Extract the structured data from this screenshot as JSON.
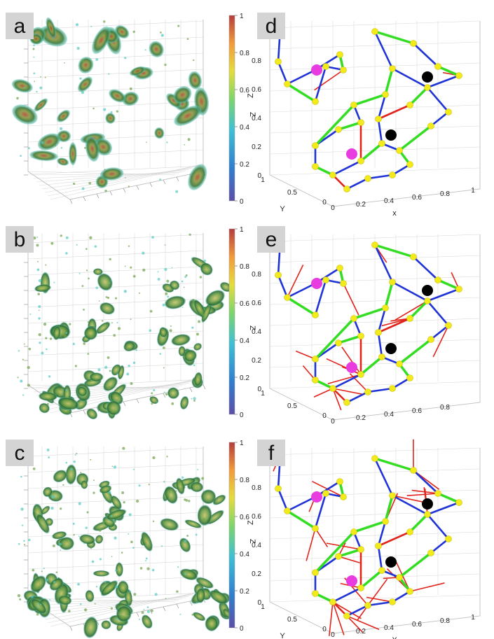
{
  "chart_data": [
    {
      "panel": "a",
      "type": "3d-isosurface",
      "label": "a",
      "colorbar": {
        "ticks": [
          "0",
          "0.2",
          "0.4",
          "0.6",
          "0.8",
          "1"
        ],
        "label": "Z",
        "colormap": [
          "#5b4ea8",
          "#2f7fd0",
          "#3cc0d6",
          "#7dd66a",
          "#e6dc3c",
          "#f29a3a",
          "#b63c3c"
        ]
      }
    },
    {
      "panel": "b",
      "type": "3d-isosurface",
      "label": "b",
      "colorbar": {
        "ticks": [
          "0",
          "0.2",
          "0.4",
          "0.6",
          "0.8",
          "1"
        ],
        "label": "Z"
      }
    },
    {
      "panel": "c",
      "type": "3d-isosurface",
      "label": "c",
      "colorbar": {
        "ticks": [
          "0",
          "0.2",
          "0.4",
          "0.6",
          "0.8",
          "1"
        ],
        "label": "Z"
      }
    },
    {
      "panel": "d",
      "type": "3d-network",
      "label": "d",
      "axes": {
        "z_ticks": [
          "0",
          "0.2",
          "0.4",
          "0.6",
          "0.8",
          "1"
        ],
        "x_ticks": [
          "0",
          "0.2",
          "0.4",
          "0.6",
          "0.8",
          "1"
        ],
        "y_ticks": [
          "0",
          "0.5",
          "1"
        ],
        "xlabel": "x",
        "ylabel": "Y",
        "zlabel": "Z"
      }
    },
    {
      "panel": "e",
      "type": "3d-network",
      "label": "e",
      "axes": {
        "z_ticks": [
          "0",
          "0.2",
          "0.4",
          "0.6",
          "0.8",
          "1"
        ],
        "x_ticks": [
          "0",
          "0.2",
          "0.4",
          "0.6",
          "0.8"
        ],
        "y_ticks": [
          "0",
          "0.5",
          "1"
        ],
        "xlabel": "",
        "ylabel": "",
        "zlabel": ""
      }
    },
    {
      "panel": "f",
      "type": "3d-network",
      "label": "f",
      "axes": {
        "z_ticks": [
          "0",
          "0.2",
          "0.4",
          "0.6",
          "0.8",
          "1"
        ],
        "x_ticks": [
          "0",
          "0.2",
          "0.4",
          "0.6",
          "0.8",
          "1"
        ],
        "y_ticks": [
          "0",
          "0.5",
          "1"
        ],
        "xlabel": "X",
        "ylabel": "Y",
        "zlabel": "Z"
      }
    }
  ],
  "colors": {
    "node": "#f2ea1a",
    "node_edge": "#c8c000",
    "magenta_node": "#e83ce0",
    "black_node": "#000000",
    "edge_blue": "#1f33d6",
    "edge_green": "#33dd22",
    "edge_red": "#e0241c",
    "grid": "#d9d9d9",
    "label_bg": "#d4d4d4",
    "blob_dark": "#2e6a35",
    "blob_mid": "#6fa24a",
    "blob_light": "#c9d37a",
    "blob_red": "#b64a33",
    "blob_cyan": "#56c9c0"
  }
}
